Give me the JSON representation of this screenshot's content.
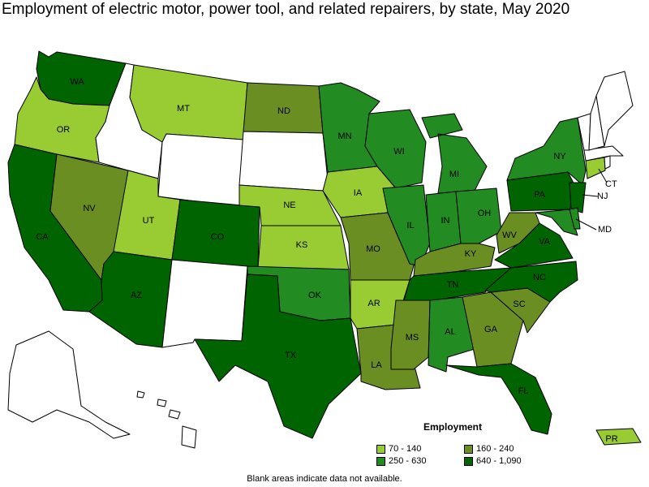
{
  "title": "Employment of electric motor, power tool, and related repairers, by state, May 2020",
  "colors": {
    "none": "#ffffff",
    "c1": "#99cc33",
    "c2": "#6b8e23",
    "c3": "#228b22",
    "c4": "#006400"
  },
  "states": {
    "WA": {
      "cat": "c4",
      "label": "WA"
    },
    "OR": {
      "cat": "c1",
      "label": "OR"
    },
    "CA": {
      "cat": "c4",
      "label": "CA"
    },
    "NV": {
      "cat": "c2",
      "label": "NV"
    },
    "ID": {
      "cat": "none",
      "label": ""
    },
    "MT": {
      "cat": "c1",
      "label": "MT"
    },
    "WY": {
      "cat": "none",
      "label": ""
    },
    "UT": {
      "cat": "c1",
      "label": "UT"
    },
    "AZ": {
      "cat": "c4",
      "label": "AZ"
    },
    "CO": {
      "cat": "c4",
      "label": "CO"
    },
    "NM": {
      "cat": "none",
      "label": ""
    },
    "ND": {
      "cat": "c2",
      "label": "ND"
    },
    "SD": {
      "cat": "none",
      "label": ""
    },
    "NE": {
      "cat": "c1",
      "label": "NE"
    },
    "KS": {
      "cat": "c1",
      "label": "KS"
    },
    "OK": {
      "cat": "c3",
      "label": "OK"
    },
    "TX": {
      "cat": "c4",
      "label": "TX"
    },
    "MN": {
      "cat": "c3",
      "label": "MN"
    },
    "IA": {
      "cat": "c1",
      "label": "IA"
    },
    "MO": {
      "cat": "c2",
      "label": "MO"
    },
    "AR": {
      "cat": "c1",
      "label": "AR"
    },
    "LA": {
      "cat": "c2",
      "label": "LA"
    },
    "WI": {
      "cat": "c3",
      "label": "WI"
    },
    "IL": {
      "cat": "c3",
      "label": "IL"
    },
    "MI": {
      "cat": "c3",
      "label": "MI"
    },
    "IN": {
      "cat": "c3",
      "label": "IN"
    },
    "OH": {
      "cat": "c3",
      "label": "OH"
    },
    "KY": {
      "cat": "c2",
      "label": "KY"
    },
    "TN": {
      "cat": "c4",
      "label": "TN"
    },
    "MS": {
      "cat": "c2",
      "label": "MS"
    },
    "AL": {
      "cat": "c3",
      "label": "AL"
    },
    "GA": {
      "cat": "c2",
      "label": "GA"
    },
    "FL": {
      "cat": "c4",
      "label": "FL"
    },
    "SC": {
      "cat": "c2",
      "label": "SC"
    },
    "NC": {
      "cat": "c4",
      "label": "NC"
    },
    "VA": {
      "cat": "c4",
      "label": "VA"
    },
    "WV": {
      "cat": "c2",
      "label": "WV"
    },
    "PA": {
      "cat": "c4",
      "label": "PA"
    },
    "NY": {
      "cat": "c3",
      "label": "NY"
    },
    "NJ": {
      "cat": "c4",
      "label": "NJ"
    },
    "MD": {
      "cat": "c3",
      "label": "MD"
    },
    "DE": {
      "cat": "c3",
      "label": ""
    },
    "CT": {
      "cat": "c1",
      "label": "CT"
    },
    "RI": {
      "cat": "none",
      "label": ""
    },
    "MA": {
      "cat": "none",
      "label": ""
    },
    "VT": {
      "cat": "none",
      "label": ""
    },
    "NH": {
      "cat": "none",
      "label": ""
    },
    "ME": {
      "cat": "none",
      "label": ""
    },
    "AK": {
      "cat": "none",
      "label": ""
    },
    "HI": {
      "cat": "none",
      "label": ""
    },
    "PR": {
      "cat": "c1",
      "label": "PR"
    }
  },
  "legend": {
    "title": "Employment",
    "items": [
      {
        "label": "70 - 140",
        "cat": "c1"
      },
      {
        "label": "160 - 240",
        "cat": "c2"
      },
      {
        "label": "250 - 630",
        "cat": "c3"
      },
      {
        "label": "640 - 1,090",
        "cat": "c4"
      }
    ]
  },
  "footnote": "Blank areas indicate data not available."
}
